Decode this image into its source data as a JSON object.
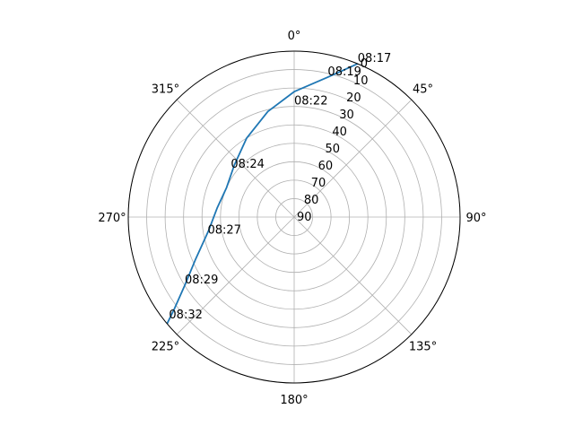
{
  "chart_data": {
    "type": "polar-line",
    "title": "",
    "theta_zero_location": "N",
    "theta_direction": "clockwise",
    "theta_ticks": [
      {
        "deg": 0,
        "label": "0°"
      },
      {
        "deg": 45,
        "label": "45°"
      },
      {
        "deg": 90,
        "label": "90°"
      },
      {
        "deg": 135,
        "label": "135°"
      },
      {
        "deg": 180,
        "label": "180°"
      },
      {
        "deg": 225,
        "label": "225°"
      },
      {
        "deg": 270,
        "label": "270°"
      },
      {
        "deg": 315,
        "label": "315°"
      }
    ],
    "r_axis": {
      "center_value": 90,
      "edge_value": 0,
      "ticks": [
        0,
        10,
        20,
        30,
        40,
        50,
        60,
        70,
        80,
        90
      ],
      "tick_labels": [
        "0",
        "10",
        "20",
        "30",
        "40",
        "50",
        "60",
        "70",
        "80",
        "90"
      ],
      "label_angle_deg": 22.5
    },
    "grid": true,
    "series": [
      {
        "color": "#1f77b4",
        "points": [
          {
            "az": 22.5,
            "alt": 0
          },
          {
            "az": 13.5,
            "alt": 12
          },
          {
            "az": 0.0,
            "alt": 22
          },
          {
            "az": 346.0,
            "alt": 31
          },
          {
            "az": 329.0,
            "alt": 40
          },
          {
            "az": 311.0,
            "alt": 47
          },
          {
            "az": 293.5,
            "alt": 50
          },
          {
            "az": 277.0,
            "alt": 48
          },
          {
            "az": 261.0,
            "alt": 43
          },
          {
            "az": 247.0,
            "alt": 32
          },
          {
            "az": 238.0,
            "alt": 20
          },
          {
            "az": 232.5,
            "alt": 8
          },
          {
            "az": 230.0,
            "alt": 0
          }
        ]
      }
    ],
    "annotations": [
      {
        "text": "08:17",
        "az": 22.5,
        "alt": 0
      },
      {
        "text": "08:19",
        "az": 13.5,
        "alt": 12
      },
      {
        "text": "08:22",
        "az": 0.0,
        "alt": 30
      },
      {
        "text": "08:24",
        "az": 307.0,
        "alt": 47
      },
      {
        "text": "08:27",
        "az": 258.0,
        "alt": 42
      },
      {
        "text": "08:29",
        "az": 238.0,
        "alt": 20
      },
      {
        "text": "08:32",
        "az": 230.5,
        "alt": 2
      }
    ]
  }
}
